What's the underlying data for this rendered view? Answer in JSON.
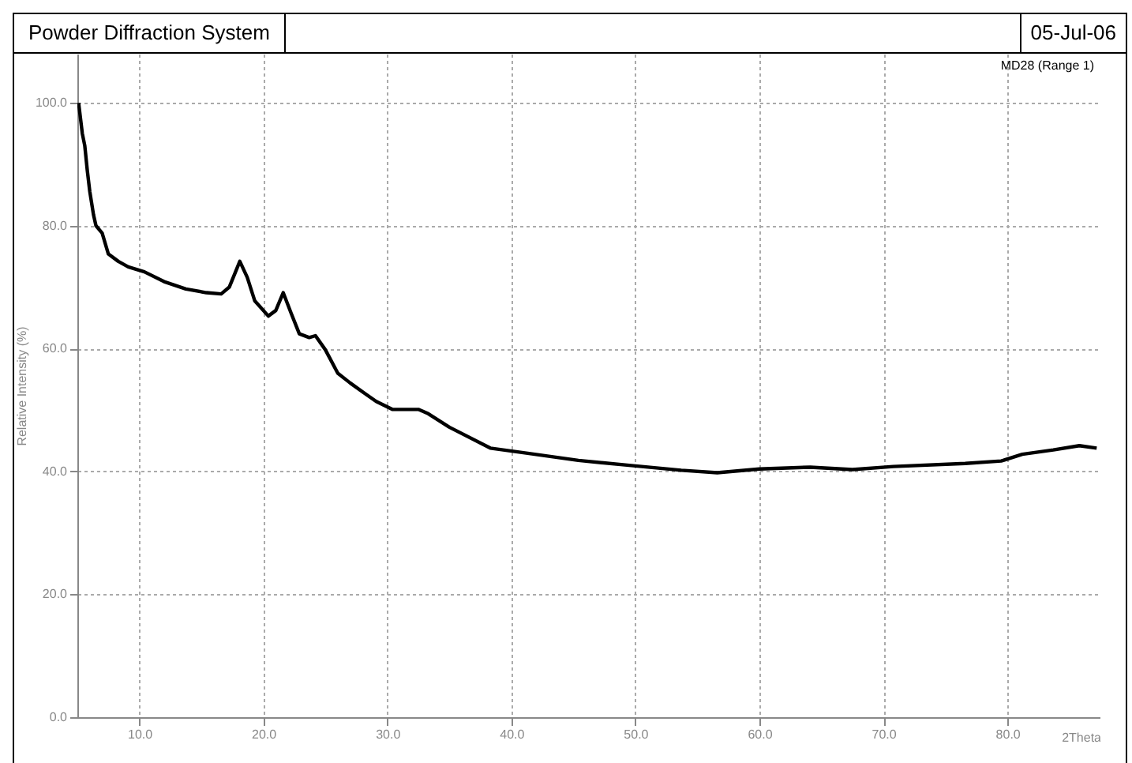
{
  "chart_data": {
    "type": "line",
    "title": "Powder Diffraction System",
    "annotations": [
      "05-Jul-06"
    ],
    "xlabel": "2Theta",
    "ylabel": "Relative Intensity (%)",
    "x": [
      5.1,
      5.4,
      5.6,
      5.8,
      6.0,
      6.3,
      6.5,
      7.0,
      7.5,
      8.3,
      9.1,
      10.4,
      12.0,
      13.75,
      15.4,
      16.6,
      17.25,
      18.1,
      18.7,
      19.3,
      20.4,
      21.0,
      21.6,
      22.25,
      22.9,
      23.7,
      24.2,
      25.0,
      26.0,
      27.0,
      28.1,
      29.1,
      30.4,
      32.5,
      33.3,
      35.0,
      38.3,
      41.2,
      45.4,
      49.5,
      53.7,
      56.6,
      60.0,
      64.1,
      67.5,
      70.8,
      76.6,
      79.5,
      81.2,
      83.7,
      85.8,
      87.2
    ],
    "series": [
      {
        "name": "MD28 (Range 1)",
        "color": "#000000",
        "values": [
          100,
          95,
          93,
          89,
          85.6,
          81.8,
          80,
          78.8,
          75.4,
          74.2,
          73.3,
          72.5,
          70.9,
          69.7,
          69.1,
          68.9,
          70,
          74.2,
          71.6,
          67.8,
          65.3,
          66.2,
          69.1,
          65.7,
          62.4,
          61.8,
          62.1,
          59.8,
          56,
          54.4,
          52.8,
          51.4,
          50.1,
          50.1,
          49.4,
          47.2,
          43.8,
          43,
          41.8,
          41,
          40.2,
          39.8,
          40.4,
          40.7,
          40.3,
          40.8,
          41.3,
          41.7,
          42.8,
          43.5,
          44.2,
          43.8
        ]
      }
    ],
    "xlim": [
      5,
      87.5
    ],
    "ylim": [
      0,
      108
    ],
    "xticks": [
      {
        "value": 10,
        "label": "10.0"
      },
      {
        "value": 20,
        "label": "20.0"
      },
      {
        "value": 30,
        "label": "30.0"
      },
      {
        "value": 40,
        "label": "40.0"
      },
      {
        "value": 50,
        "label": "50.0"
      },
      {
        "value": 60,
        "label": "60.0"
      },
      {
        "value": 70,
        "label": "70.0"
      },
      {
        "value": 80,
        "label": "80.0"
      }
    ],
    "yticks": [
      {
        "value": 0,
        "label": "0.0"
      },
      {
        "value": 20,
        "label": "20.0"
      },
      {
        "value": 40,
        "label": "40.0"
      },
      {
        "value": 60,
        "label": "60.0"
      },
      {
        "value": 80,
        "label": "80.0"
      },
      {
        "value": 100,
        "label": "100.0"
      }
    ],
    "grid": true,
    "line_style": "solid",
    "marker": "none"
  }
}
